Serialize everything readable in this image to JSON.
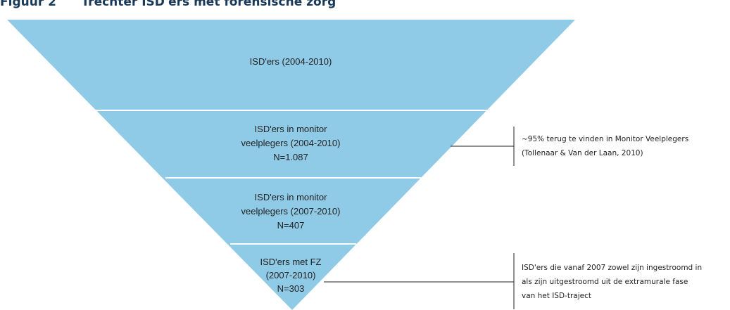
{
  "header": {
    "title": "Figuur 2      Trechter ISD'ers met forensische zorg"
  },
  "levels": [
    {
      "lines": [
        "ISD'ers (2004-2010)"
      ]
    },
    {
      "lines": [
        "ISD'ers in monitor",
        "veelplegers (2004-2010)",
        "N=1.087"
      ]
    },
    {
      "lines": [
        "ISD'ers in monitor",
        "veelplegers (2007-2010)",
        "N=407"
      ]
    },
    {
      "lines": [
        "ISD'ers met FZ",
        "(2007-2010)",
        "N=303"
      ]
    }
  ],
  "annotations": [
    {
      "lines": [
        "~95% terug te vinden in Monitor Veelplegers",
        "(Tollenaar & Van der Laan, 2010)"
      ]
    },
    {
      "lines": [
        "ISD'ers die vanaf 2007 zowel zijn ingestroomd in",
        "als zijn uitgestroomd uit de extramurale fase",
        "van het ISD-traject"
      ]
    }
  ]
}
